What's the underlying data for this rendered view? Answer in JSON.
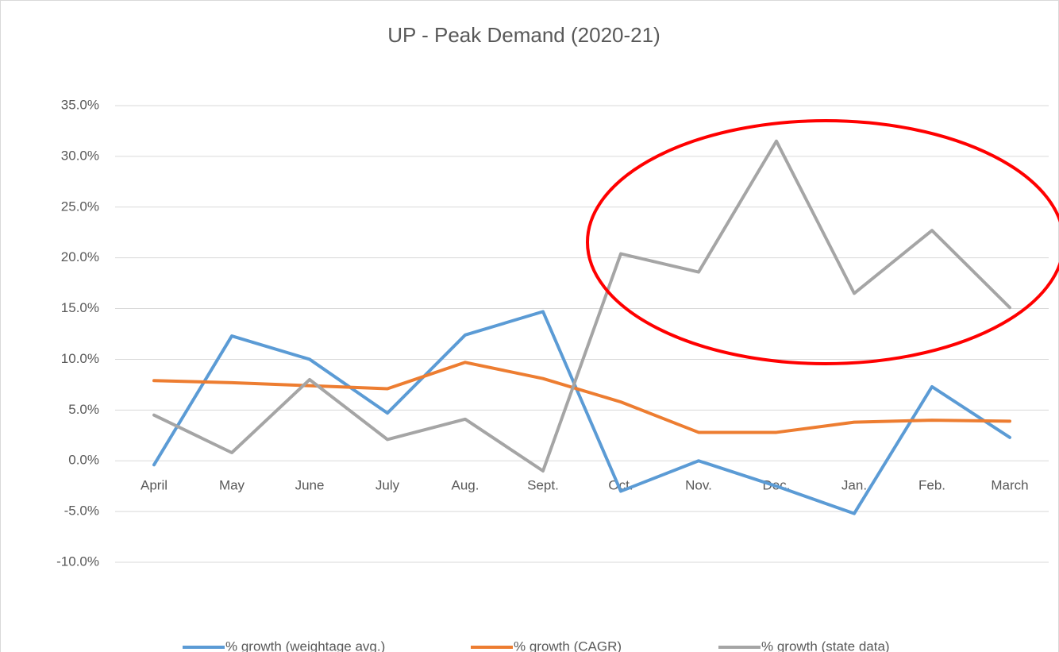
{
  "chart_data": {
    "type": "line",
    "title": "UP - Peak Demand (2020-21)",
    "categories": [
      "April",
      "May",
      "June",
      "July",
      "Aug.",
      "Sept.",
      "Oct.",
      "Nov.",
      "Dec.",
      "Jan.",
      "Feb.",
      "March"
    ],
    "series": [
      {
        "name": "% growth (weightage avg.)",
        "color": "#5b9bd5",
        "values": [
          -0.4,
          12.3,
          10.0,
          4.7,
          12.4,
          14.7,
          -3.0,
          0.0,
          -2.5,
          -5.2,
          7.3,
          2.3
        ]
      },
      {
        "name": "% growth (CAGR)",
        "color": "#ed7d31",
        "values": [
          7.9,
          7.7,
          7.4,
          7.1,
          9.7,
          8.1,
          5.8,
          2.8,
          2.8,
          3.8,
          4.0,
          3.9
        ]
      },
      {
        "name": "% growth (state data)",
        "color": "#a5a5a5",
        "values": [
          4.5,
          0.8,
          8.0,
          2.1,
          4.1,
          -1.0,
          20.4,
          18.6,
          31.5,
          16.5,
          22.7,
          15.1
        ]
      }
    ],
    "ylim": [
      -10,
      35
    ],
    "yticks": [
      {
        "value": -10,
        "label": "-10.0%"
      },
      {
        "value": -5,
        "label": "-5.0%"
      },
      {
        "value": 0,
        "label": "0.0%"
      },
      {
        "value": 5,
        "label": "5.0%"
      },
      {
        "value": 10,
        "label": "10.0%"
      },
      {
        "value": 15,
        "label": "15.0%"
      },
      {
        "value": 20,
        "label": "20.0%"
      },
      {
        "value": 25,
        "label": "25.0%"
      },
      {
        "value": 30,
        "label": "30.0%"
      },
      {
        "value": 35,
        "label": "35.0%"
      }
    ],
    "grid": true,
    "legend": "bottom"
  }
}
